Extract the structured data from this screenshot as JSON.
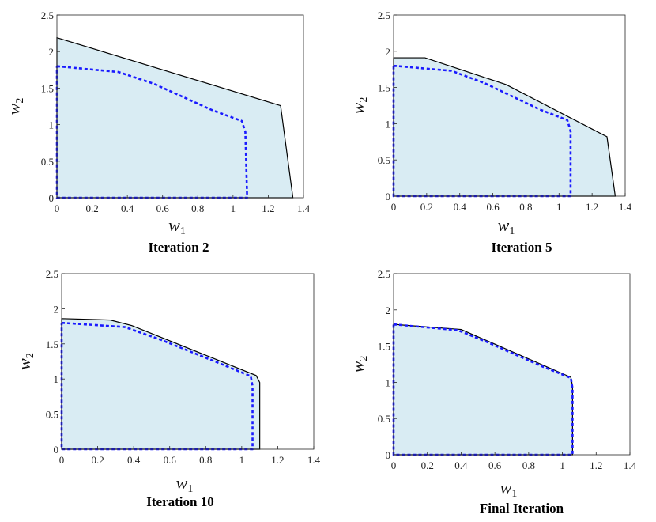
{
  "chart_data": [
    {
      "type": "area",
      "caption": "Iteration 2",
      "xlabel": "w",
      "xlabel_sub": "1",
      "ylabel": "w",
      "ylabel_sub": "2",
      "xlim": [
        0,
        1.4
      ],
      "ylim": [
        0,
        2.5
      ],
      "xticks": [
        "0",
        "0.2",
        "0.4",
        "0.6",
        "0.8",
        "1",
        "1.2",
        "1.4"
      ],
      "yticks": [
        "0",
        "0.5",
        "1",
        "1.5",
        "2",
        "2.5"
      ],
      "grid": false,
      "fill_color": "#d9ecf3",
      "outer_color": "#000000",
      "inner_color": "#1a1aff",
      "outer_region": [
        [
          0,
          2.19
        ],
        [
          1.27,
          1.26
        ],
        [
          1.34,
          0
        ],
        [
          0,
          0
        ]
      ],
      "inner_boundary": [
        [
          0,
          1.8
        ],
        [
          0.35,
          1.72
        ],
        [
          0.55,
          1.56
        ],
        [
          0.88,
          1.2
        ],
        [
          1.05,
          1.05
        ],
        [
          1.07,
          0.9
        ],
        [
          1.08,
          0
        ],
        [
          0,
          0
        ],
        [
          0,
          1.8
        ]
      ]
    },
    {
      "type": "area",
      "caption": "Iteration 5",
      "xlabel": "w",
      "xlabel_sub": "1",
      "ylabel": "w",
      "ylabel_sub": "2",
      "xlim": [
        0,
        1.4
      ],
      "ylim": [
        0,
        2.5
      ],
      "xticks": [
        "0",
        "0.2",
        "0.4",
        "0.6",
        "0.8",
        "1",
        "1.2",
        "1.4"
      ],
      "yticks": [
        "0",
        "0.5",
        "1",
        "1.5",
        "2",
        "2.5"
      ],
      "grid": false,
      "fill_color": "#d9ecf3",
      "outer_color": "#000000",
      "inner_color": "#1a1aff",
      "outer_region": [
        [
          0,
          1.91
        ],
        [
          0.19,
          1.91
        ],
        [
          0.68,
          1.54
        ],
        [
          1.29,
          0.82
        ],
        [
          1.34,
          0
        ],
        [
          0,
          0
        ]
      ],
      "inner_boundary": [
        [
          0,
          1.8
        ],
        [
          0.35,
          1.73
        ],
        [
          0.55,
          1.56
        ],
        [
          0.88,
          1.2
        ],
        [
          1.05,
          1.05
        ],
        [
          1.07,
          0.9
        ],
        [
          1.07,
          0
        ],
        [
          0,
          0
        ],
        [
          0,
          1.8
        ]
      ]
    },
    {
      "type": "area",
      "caption": "Iteration 10",
      "xlabel": "w",
      "xlabel_sub": "1",
      "ylabel": "w",
      "ylabel_sub": "2",
      "xlim": [
        0,
        1.4
      ],
      "ylim": [
        0,
        2.5
      ],
      "xticks": [
        "0",
        "0.2",
        "0.4",
        "0.6",
        "0.8",
        "1",
        "1.2",
        "1.4"
      ],
      "yticks": [
        "0",
        "0.5",
        "1",
        "1.5",
        "2",
        "2.5"
      ],
      "grid": false,
      "fill_color": "#d9ecf3",
      "outer_color": "#000000",
      "inner_color": "#1a1aff",
      "outer_region": [
        [
          0,
          1.86
        ],
        [
          0.27,
          1.84
        ],
        [
          0.39,
          1.76
        ],
        [
          1.08,
          1.05
        ],
        [
          1.1,
          0.95
        ],
        [
          1.1,
          0
        ],
        [
          0,
          0
        ]
      ],
      "inner_boundary": [
        [
          0,
          1.8
        ],
        [
          0.35,
          1.74
        ],
        [
          0.55,
          1.56
        ],
        [
          0.88,
          1.22
        ],
        [
          1.05,
          1.04
        ],
        [
          1.06,
          0.9
        ],
        [
          1.06,
          0
        ],
        [
          0,
          0
        ],
        [
          0,
          1.8
        ]
      ]
    },
    {
      "type": "area",
      "caption": "Final Iteration",
      "xlabel": "w",
      "xlabel_sub": "1",
      "ylabel": "w",
      "ylabel_sub": "2",
      "xlim": [
        0,
        1.4
      ],
      "ylim": [
        0,
        2.5
      ],
      "xticks": [
        "0",
        "0.2",
        "0.4",
        "0.6",
        "0.8",
        "1",
        "1.2",
        "1.4"
      ],
      "yticks": [
        "0",
        "0.5",
        "1",
        "1.5",
        "2",
        "2.5"
      ],
      "grid": false,
      "fill_color": "#d9ecf3",
      "outer_color": "#000000",
      "inner_color": "#1a1aff",
      "outer_region": [
        [
          0,
          1.8
        ],
        [
          0.4,
          1.73
        ],
        [
          1.05,
          1.07
        ],
        [
          1.06,
          0.95
        ],
        [
          1.06,
          0
        ],
        [
          0,
          0
        ]
      ],
      "inner_boundary": [
        [
          0,
          1.8
        ],
        [
          0.38,
          1.72
        ],
        [
          0.55,
          1.56
        ],
        [
          0.88,
          1.22
        ],
        [
          1.05,
          1.06
        ],
        [
          1.06,
          0.92
        ],
        [
          1.06,
          0
        ],
        [
          0,
          0
        ],
        [
          0,
          1.8
        ]
      ]
    }
  ]
}
